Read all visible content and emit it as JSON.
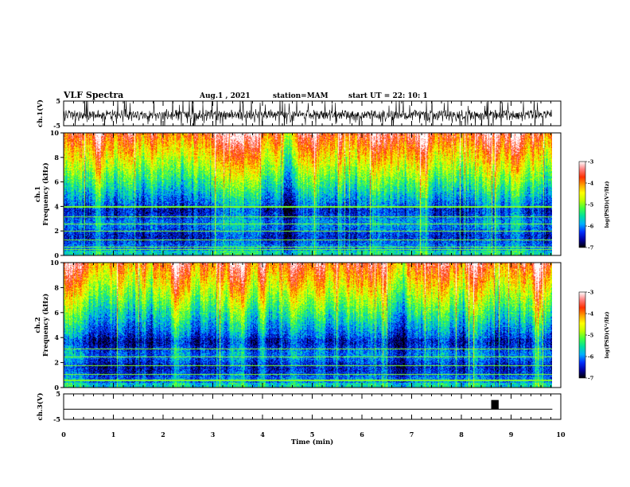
{
  "header": {
    "title": "VLF Spectra",
    "date": "Aug.1 , 2021",
    "station": "station=MAM",
    "start": "start UT = 22: 10: 1"
  },
  "colors": {
    "colormap": [
      "#000000",
      "#0000a0",
      "#0030ff",
      "#00b0ff",
      "#00e0a0",
      "#40ff40",
      "#c0ff00",
      "#ffff00",
      "#ffa000",
      "#ff3000",
      "#ff8080",
      "#ffffff"
    ]
  },
  "chart_data": [
    {
      "type": "line",
      "name": "ch1-waveform",
      "ylabel": "ch.1(V)",
      "ylim": [
        -5,
        5
      ],
      "yticks": [
        "5",
        "-5"
      ],
      "xlim": [
        0,
        10
      ]
    },
    {
      "type": "heatmap",
      "name": "ch1-spectrogram",
      "ylabel": "ch.1",
      "ylabel2": "Frequency (kHz)",
      "ylim": [
        0,
        10
      ],
      "yticks": [
        "0",
        "2",
        "4",
        "6",
        "8",
        "10"
      ],
      "xlim": [
        0,
        10
      ],
      "colorbar": {
        "label": "log(PSD)(V²/Hz)",
        "range": [
          -7,
          -3
        ],
        "ticks": [
          "-3",
          "-4",
          "-5",
          "-6",
          "-7"
        ]
      }
    },
    {
      "type": "heatmap",
      "name": "ch2-spectrogram",
      "ylabel": "ch.2",
      "ylabel2": "Frequency (kHz)",
      "ylim": [
        0,
        10
      ],
      "yticks": [
        "0",
        "2",
        "4",
        "6",
        "8",
        "10"
      ],
      "xlim": [
        0,
        10
      ],
      "colorbar": {
        "label": "log(PSD)(V²/Hz)",
        "range": [
          -7,
          -3
        ],
        "ticks": [
          "-3",
          "-4",
          "-5",
          "-6",
          "-7"
        ]
      }
    },
    {
      "type": "line",
      "name": "ch3-signal",
      "ylabel": "ch.3(V)",
      "ylim": [
        -5,
        5
      ],
      "yticks": [
        "5",
        "-5"
      ],
      "xlabel": "Time (min)",
      "xlim": [
        0,
        10
      ],
      "xticks": [
        "0",
        "1",
        "2",
        "3",
        "4",
        "5",
        "6",
        "7",
        "8",
        "9",
        "10"
      ],
      "pulse": {
        "t_start": 8.6,
        "t_end": 8.75,
        "high": 2.6,
        "baseline": -1.0
      }
    }
  ]
}
